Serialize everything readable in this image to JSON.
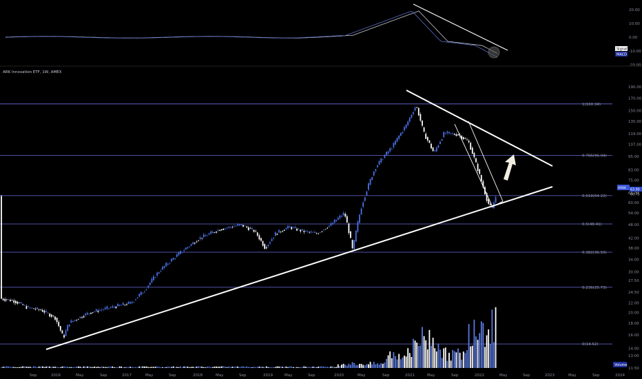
{
  "chart_data": [
    {
      "type": "line",
      "name": "macd-pane",
      "ylim": [
        -20,
        25
      ],
      "yticks": [
        "20.00",
        "10.00",
        "0.00",
        "-10.00",
        "-20.00"
      ],
      "legend": [
        "Signal",
        "MACD"
      ],
      "colors": {
        "macd": "#5b6cc8",
        "signal": "#c8cbd4",
        "trend": "#ffffff"
      }
    },
    {
      "type": "line",
      "title": "ARK Innovation ETF, 1W, AMEX",
      "scale": "log",
      "ylim": [
        11.5,
        185
      ],
      "yticks": [
        "11.50",
        "13.00",
        "14.00",
        "16.00",
        "18.00",
        "20.00",
        "22.00",
        "24.50",
        "27.50",
        "30.00",
        "34.00",
        "38.00",
        "42.00",
        "48.00",
        "54.00",
        "60.00",
        "66.00",
        "75.00",
        "83.00",
        "95.00",
        "107.00",
        "119.00",
        "135.00",
        "150.00",
        "170.00",
        "190.00"
      ],
      "fib_levels": [
        {
          "label": "1(160.34)",
          "value": 160.34
        },
        {
          "label": "0.786(96.04)",
          "value": 96.04
        },
        {
          "label": "0.618(64.22)",
          "value": 64.22
        },
        {
          "label": "0.5(48.41)",
          "value": 48.41
        },
        {
          "label": "0.382(36.50)",
          "value": 36.5
        },
        {
          "label": "0.236(25.73)",
          "value": 25.73
        },
        {
          "label": "0(14.62)",
          "value": 14.62
        }
      ],
      "price_tag": {
        "ticker": "ARKK",
        "last": "63.90",
        "prev": "60.75"
      },
      "volume_label": "Volume",
      "x_ticks": [
        "Sep",
        "2016",
        "May",
        "Sep",
        "2017",
        "May",
        "Sep",
        "2018",
        "May",
        "Sep",
        "2019",
        "May",
        "Sep",
        "2020",
        "May",
        "Sep",
        "2021",
        "May",
        "Sep",
        "2022",
        "May",
        "Sep",
        "2023",
        "May",
        "Sep",
        "2024"
      ],
      "colors": {
        "up": "#4a72e8",
        "down": "#ffffff",
        "fib": "#6e6ee0",
        "volume": "#ffffff",
        "volume_up": "#5a7ae0"
      }
    }
  ]
}
